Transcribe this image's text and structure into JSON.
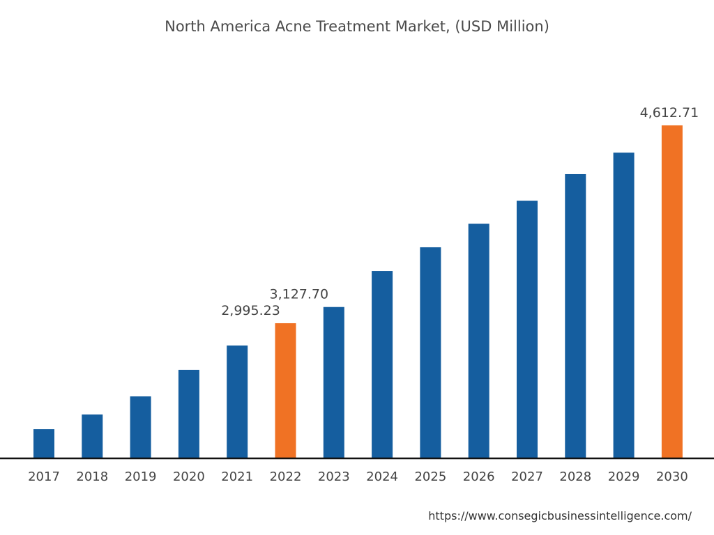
{
  "chart_data": {
    "type": "bar",
    "title": "North America Acne Treatment Market, (USD Million)",
    "xlabel": "",
    "ylabel": "",
    "categories": [
      "2017",
      "2018",
      "2019",
      "2020",
      "2021",
      "2022",
      "2023",
      "2024",
      "2025",
      "2026",
      "2027",
      "2028",
      "2029",
      "2030"
    ],
    "values": [
      2129,
      2249,
      2397,
      2614,
      2813,
      2995.23,
      3127.7,
      3422,
      3616,
      3809,
      3997,
      4214,
      4390,
      4612.71
    ],
    "data_labels": {
      "2022": "2,995.23",
      "2023": "3,127.70",
      "2030": "4,612.71"
    },
    "highlighted": [
      "2022",
      "2030"
    ],
    "colors": {
      "default": "#155e9f",
      "highlight": "#f07224"
    },
    "grid": false,
    "legend": "none"
  },
  "source": "https://www.consegicbusinessintelligence.com/"
}
